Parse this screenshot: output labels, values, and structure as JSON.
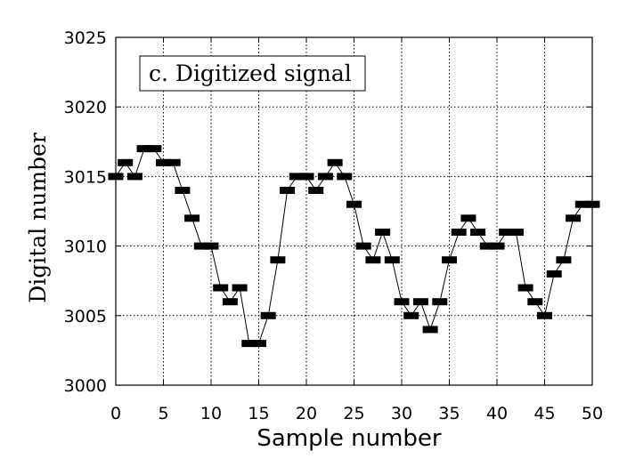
{
  "chart_data": {
    "type": "line",
    "title": "c. Digitized signal",
    "xlabel": "Sample number",
    "ylabel": "Digital number",
    "xlim": [
      0,
      50
    ],
    "ylim": [
      3000,
      3025
    ],
    "x_ticks": [
      "0",
      "5",
      "10",
      "15",
      "20",
      "25",
      "30",
      "35",
      "40",
      "45",
      "50"
    ],
    "y_ticks": [
      "3000",
      "3005",
      "3010",
      "3015",
      "3020",
      "3025"
    ],
    "grid": true,
    "marker": "bar",
    "colors": {
      "line": "#000000",
      "marker": "#000000",
      "grid": "#000000"
    },
    "series": [
      {
        "x": [
          0,
          1,
          2,
          3,
          4,
          5,
          6,
          7,
          8,
          9,
          10,
          11,
          12,
          13,
          14,
          15,
          16,
          17,
          18,
          19,
          20,
          21,
          22,
          23,
          24,
          25,
          26,
          27,
          28,
          29,
          30,
          31,
          32,
          33,
          34,
          35,
          36,
          37,
          38,
          39,
          40,
          41,
          42,
          43,
          44,
          45,
          46,
          47,
          48,
          49,
          50
        ],
        "values": [
          3015,
          3016,
          3015,
          3017,
          3017,
          3016,
          3016,
          3014,
          3012,
          3010,
          3010,
          3007,
          3006,
          3007,
          3003,
          3003,
          3005,
          3009,
          3014,
          3015,
          3015,
          3014,
          3015,
          3016,
          3015,
          3013,
          3010,
          3009,
          3011,
          3009,
          3006,
          3005,
          3006,
          3004,
          3006,
          3009,
          3011,
          3012,
          3011,
          3010,
          3010,
          3011,
          3011,
          3007,
          3006,
          3005,
          3008,
          3009,
          3012,
          3013,
          3013
        ]
      }
    ]
  }
}
